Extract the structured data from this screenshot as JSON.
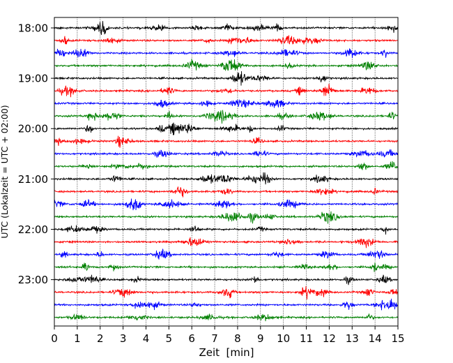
{
  "chart_data": {
    "type": "line",
    "title": "",
    "xlabel": "Zeit  [min]",
    "ylabel": "UTC (Lokalzeit = UTC + 02:00)",
    "xlim": [
      0,
      15
    ],
    "x_ticks": [
      "0",
      "1",
      "2",
      "3",
      "4",
      "5",
      "6",
      "7",
      "8",
      "9",
      "10",
      "11",
      "12",
      "13",
      "14",
      "15"
    ],
    "y_ticks": [
      "18:00",
      "19:00",
      "20:00",
      "21:00",
      "22:00",
      "23:00"
    ],
    "grid": "vertical dotted lines at each minute",
    "row_interval_minutes": 15,
    "start_time": "18:00",
    "row_count": 24,
    "colors_cycle": [
      "#000000",
      "#ff0000",
      "#0000ff",
      "#008000"
    ]
  }
}
